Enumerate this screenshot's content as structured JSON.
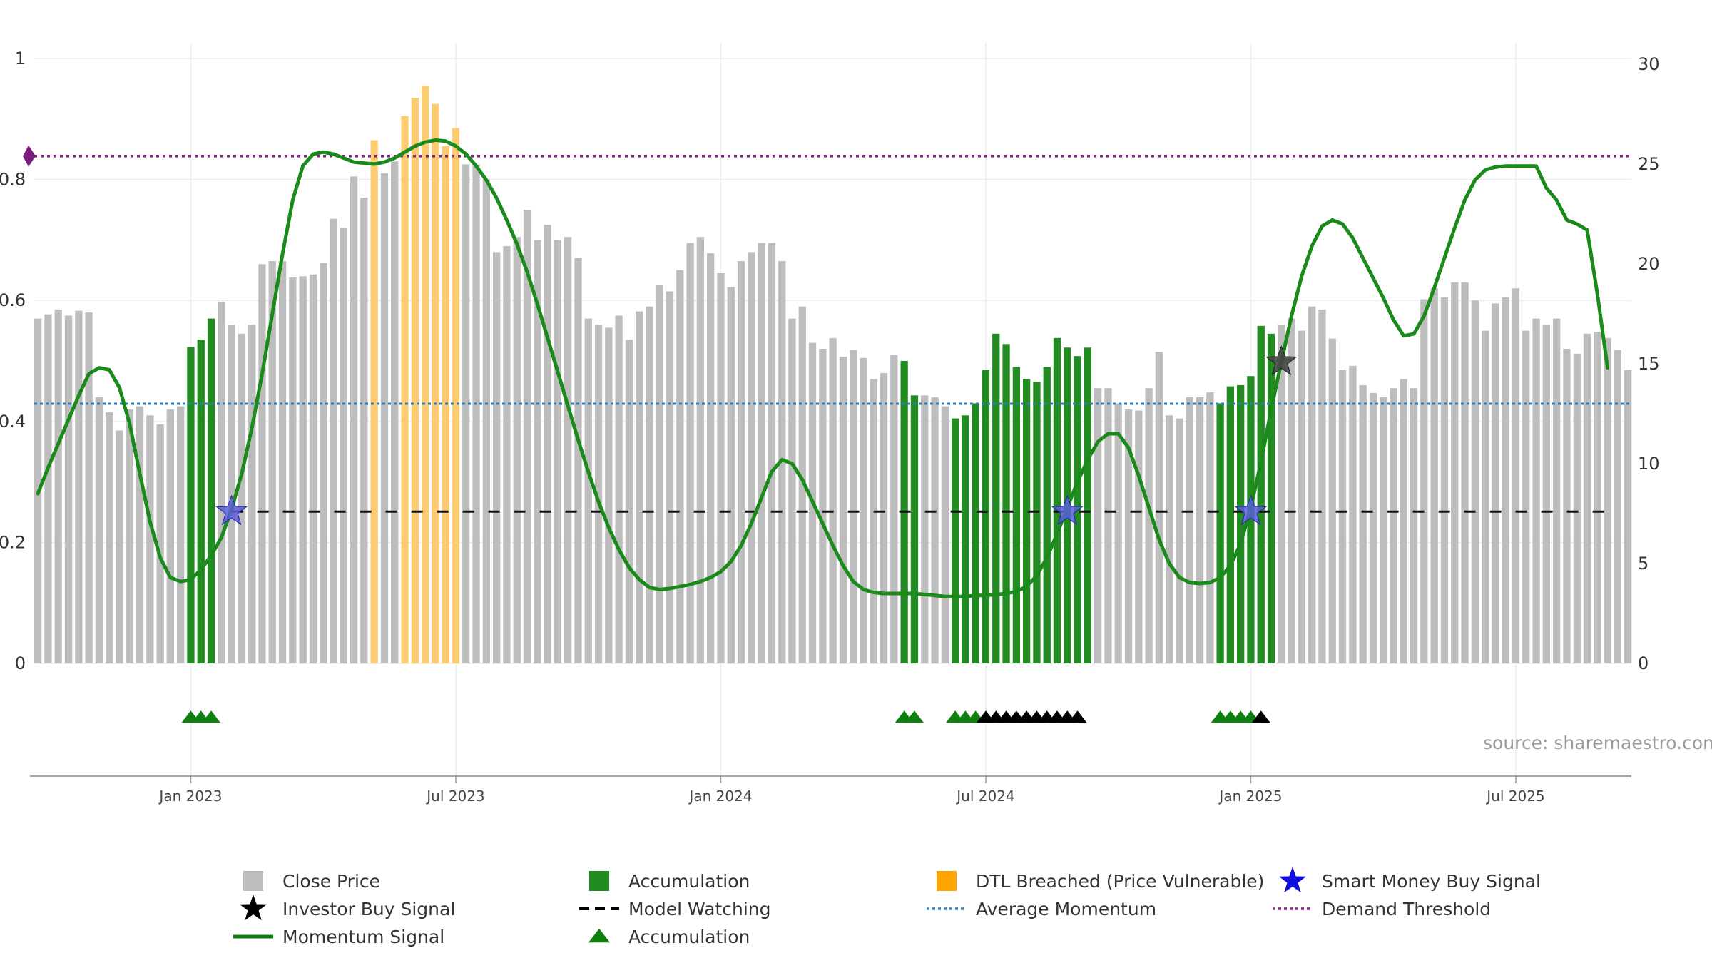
{
  "chart_data": {
    "type": "bar",
    "title": "",
    "source": "source: sharemaestro.com",
    "x_axis": {
      "ticks": [
        "Jan 2023",
        "Jul 2023",
        "Jan 2024",
        "Jul 2024",
        "Jan 2025",
        "Jul 2025"
      ],
      "tick_week_index": [
        15,
        41,
        67,
        93,
        119,
        145
      ]
    },
    "y_left": {
      "range": [
        0,
        1
      ],
      "ticks": [
        "0",
        "0.2",
        "0.4",
        "0.6",
        "0.8",
        "1"
      ],
      "tick_values": [
        0,
        0.2,
        0.4,
        0.6,
        0.8,
        1.0
      ]
    },
    "y_right": {
      "range": [
        0,
        30
      ],
      "ticks": [
        "0",
        "5",
        "10",
        "15",
        "20",
        "25",
        "30"
      ],
      "tick_values": [
        0,
        5,
        10,
        15,
        20,
        25,
        30
      ]
    },
    "grid": true,
    "colors": {
      "close": "#bdbdbd",
      "accumulation": "#228b22",
      "dtl": "#fdcc70",
      "momentum": "#1a8a1a",
      "smart_money": "#1010dd",
      "investor": "#000000",
      "average_momentum": "#2e7fb8",
      "demand_threshold": "#7b1e7b",
      "watching": "#111111"
    },
    "close_price": [
      0.57,
      0.577,
      0.585,
      0.575,
      0.583,
      0.58,
      0.44,
      0.415,
      0.385,
      0.42,
      0.425,
      0.41,
      0.395,
      0.42,
      0.425,
      0.523,
      0.535,
      0.57,
      0.598,
      0.56,
      0.545,
      0.56,
      0.66,
      0.665,
      0.665,
      0.638,
      0.64,
      0.643,
      0.662,
      0.735,
      0.72,
      0.805,
      0.77,
      0.865,
      0.81,
      0.83,
      0.905,
      0.935,
      0.955,
      0.925,
      0.855,
      0.885,
      0.825,
      0.825,
      0.8,
      0.68,
      0.69,
      0.705,
      0.75,
      0.7,
      0.725,
      0.7,
      0.705,
      0.67,
      0.57,
      0.56,
      0.555,
      0.575,
      0.535,
      0.582,
      0.59,
      0.625,
      0.615,
      0.65,
      0.695,
      0.705,
      0.678,
      0.645,
      0.622,
      0.665,
      0.68,
      0.695,
      0.695,
      0.665,
      0.57,
      0.59,
      0.53,
      0.52,
      0.538,
      0.507,
      0.518,
      0.505,
      0.47,
      0.48,
      0.51,
      0.5,
      0.443,
      0.443,
      0.44,
      0.425,
      0.405,
      0.41,
      0.43,
      0.485,
      0.545,
      0.528,
      0.49,
      0.47,
      0.465,
      0.49,
      0.538,
      0.522,
      0.508,
      0.522,
      0.455,
      0.455,
      0.43,
      0.42,
      0.418,
      0.455,
      0.515,
      0.41,
      0.405,
      0.44,
      0.44,
      0.448,
      0.43,
      0.458,
      0.46,
      0.475,
      0.558,
      0.545,
      0.56,
      0.57,
      0.55,
      0.59,
      0.585,
      0.537,
      0.485,
      0.492,
      0.46,
      0.447,
      0.44,
      0.455,
      0.47,
      0.455,
      0.602,
      0.62,
      0.605,
      0.63,
      0.63,
      0.6,
      0.55,
      0.595,
      0.605,
      0.62,
      0.55,
      0.57,
      0.56,
      0.57,
      0.52,
      0.512,
      0.545,
      0.548,
      0.538,
      0.518,
      0.485
    ],
    "dtl_breached_weeks": [
      33,
      36,
      37,
      38,
      39,
      40,
      41
    ],
    "accumulation_weeks": [
      15,
      16,
      17,
      85,
      86,
      90,
      91,
      92,
      93,
      94,
      95,
      96,
      97,
      98,
      99,
      100,
      101,
      102,
      103,
      116,
      117,
      118,
      119,
      120,
      121
    ],
    "momentum_signal": {
      "points": [
        [
          0,
          8.5
        ],
        [
          1,
          9.8
        ],
        [
          2,
          11
        ],
        [
          3,
          12.2
        ],
        [
          4,
          13.4
        ],
        [
          5,
          14.5
        ],
        [
          6,
          14.8
        ],
        [
          7,
          14.7
        ],
        [
          8,
          13.8
        ],
        [
          9,
          12
        ],
        [
          10,
          9.5
        ],
        [
          11,
          7.1
        ],
        [
          12,
          5.3
        ],
        [
          13,
          4.3
        ],
        [
          14,
          4.1
        ],
        [
          15,
          4.2
        ],
        [
          16,
          4.7
        ],
        [
          17,
          5.4
        ],
        [
          18,
          6.3
        ],
        [
          19,
          7.7
        ],
        [
          20,
          9.5
        ],
        [
          21,
          11.8
        ],
        [
          22,
          14.5
        ],
        [
          23,
          17.5
        ],
        [
          24,
          20.5
        ],
        [
          25,
          23.2
        ],
        [
          26,
          24.9
        ],
        [
          27,
          25.5
        ],
        [
          28,
          25.6
        ],
        [
          29,
          25.5
        ],
        [
          30,
          25.3
        ],
        [
          31,
          25.1
        ],
        [
          32,
          25.05
        ],
        [
          33,
          25.0
        ],
        [
          34,
          25.1
        ],
        [
          35,
          25.3
        ],
        [
          36,
          25.6
        ],
        [
          37,
          25.9
        ],
        [
          38,
          26.1
        ],
        [
          39,
          26.2
        ],
        [
          40,
          26.15
        ],
        [
          41,
          25.9
        ],
        [
          42,
          25.5
        ],
        [
          43,
          24.9
        ],
        [
          44,
          24.2
        ],
        [
          45,
          23.3
        ],
        [
          46,
          22.2
        ],
        [
          47,
          21
        ],
        [
          48,
          19.6
        ],
        [
          49,
          18
        ],
        [
          50,
          16.3
        ],
        [
          51,
          14.6
        ],
        [
          52,
          12.9
        ],
        [
          53,
          11.2
        ],
        [
          54,
          9.6
        ],
        [
          55,
          8.1
        ],
        [
          56,
          6.8
        ],
        [
          57,
          5.7
        ],
        [
          58,
          4.8
        ],
        [
          59,
          4.2
        ],
        [
          60,
          3.8
        ],
        [
          61,
          3.7
        ],
        [
          62,
          3.75
        ],
        [
          63,
          3.85
        ],
        [
          64,
          3.95
        ],
        [
          65,
          4.1
        ],
        [
          66,
          4.3
        ],
        [
          67,
          4.6
        ],
        [
          68,
          5.1
        ],
        [
          69,
          5.9
        ],
        [
          70,
          7
        ],
        [
          71,
          8.3
        ],
        [
          72,
          9.6
        ],
        [
          73,
          10.2
        ],
        [
          74,
          10
        ],
        [
          75,
          9.2
        ],
        [
          76,
          8.1
        ],
        [
          77,
          7
        ],
        [
          78,
          5.9
        ],
        [
          79,
          4.9
        ],
        [
          80,
          4.1
        ],
        [
          81,
          3.7
        ],
        [
          82,
          3.55
        ],
        [
          83,
          3.5
        ],
        [
          84,
          3.5
        ],
        [
          85,
          3.5
        ],
        [
          86,
          3.5
        ],
        [
          87,
          3.45
        ],
        [
          88,
          3.4
        ],
        [
          89,
          3.35
        ],
        [
          90,
          3.35
        ],
        [
          91,
          3.35
        ],
        [
          92,
          3.4
        ],
        [
          93,
          3.4
        ],
        [
          94,
          3.45
        ],
        [
          95,
          3.5
        ],
        [
          96,
          3.6
        ],
        [
          97,
          3.85
        ],
        [
          98,
          4.4
        ],
        [
          99,
          5.3
        ],
        [
          100,
          6.5
        ],
        [
          101,
          7.8
        ],
        [
          102,
          9.1
        ],
        [
          103,
          10.2
        ],
        [
          104,
          11.1
        ],
        [
          105,
          11.5
        ],
        [
          106,
          11.5
        ],
        [
          107,
          10.8
        ],
        [
          108,
          9.4
        ],
        [
          109,
          7.8
        ],
        [
          110,
          6.2
        ],
        [
          111,
          5
        ],
        [
          112,
          4.3
        ],
        [
          113,
          4.05
        ],
        [
          114,
          4.0
        ],
        [
          115,
          4.05
        ],
        [
          116,
          4.3
        ],
        [
          117,
          4.9
        ],
        [
          118,
          6
        ],
        [
          119,
          7.8
        ],
        [
          120,
          10.1
        ],
        [
          121,
          12.7
        ],
        [
          122,
          15.1
        ],
        [
          123,
          17.4
        ],
        [
          124,
          19.4
        ],
        [
          125,
          20.9
        ],
        [
          126,
          21.9
        ],
        [
          127,
          22.2
        ],
        [
          128,
          22
        ],
        [
          129,
          21.3
        ],
        [
          130,
          20.3
        ],
        [
          131,
          19.3
        ],
        [
          132,
          18.3
        ],
        [
          133,
          17.2
        ],
        [
          134,
          16.4
        ],
        [
          135,
          16.5
        ],
        [
          136,
          17.4
        ],
        [
          137,
          18.8
        ],
        [
          138,
          20.3
        ],
        [
          139,
          21.8
        ],
        [
          140,
          23.2
        ],
        [
          141,
          24.2
        ],
        [
          142,
          24.7
        ],
        [
          143,
          24.85
        ],
        [
          144,
          24.9
        ],
        [
          145,
          24.9
        ],
        [
          146,
          24.9
        ],
        [
          147,
          24.9
        ],
        [
          148,
          23.8
        ],
        [
          149,
          23.2
        ],
        [
          150,
          22.2
        ],
        [
          151,
          22
        ],
        [
          152,
          21.7
        ],
        [
          153,
          18.5
        ],
        [
          154,
          14.8
        ]
      ]
    },
    "average_momentum": 13.0,
    "demand_threshold": 25.4,
    "model_watching": {
      "level": 7.6,
      "from_week": 19,
      "to_week": 155
    },
    "smart_money_buy_signals": [
      {
        "week": 19,
        "value": 7.6
      },
      {
        "week": 101,
        "value": 7.6
      },
      {
        "week": 119,
        "value": 7.6
      }
    ],
    "investor_buy_signals": [
      {
        "week": 122,
        "value": 15.1
      }
    ],
    "accumulation_markers": {
      "green": [
        15,
        16,
        17,
        85,
        86,
        90,
        91,
        92,
        116,
        117,
        118,
        119
      ],
      "black": [
        93,
        94,
        95,
        96,
        97,
        98,
        99,
        100,
        101,
        102,
        120
      ]
    },
    "legend": [
      {
        "label": "Close Price",
        "type": "square",
        "color": "#bdbdbd"
      },
      {
        "label": "Accumulation",
        "type": "square",
        "color": "#228b22"
      },
      {
        "label": "DTL Breached (Price Vulnerable)",
        "type": "square",
        "color": "#ffa500"
      },
      {
        "label": "Smart Money Buy Signal",
        "type": "star",
        "color": "#1010dd"
      },
      {
        "label": "Investor Buy Signal",
        "type": "star",
        "color": "#000000"
      },
      {
        "label": "Model Watching",
        "type": "dash",
        "color": "#000000"
      },
      {
        "label": "Average Momentum",
        "type": "dot",
        "color": "#2e7fb8"
      },
      {
        "label": "Demand Threshold",
        "type": "dot",
        "color": "#7b1e7b"
      },
      {
        "label": "Momentum Signal",
        "type": "line",
        "color": "#0f800f"
      },
      {
        "label": "Accumulation",
        "type": "triangle",
        "color": "#0f800f"
      }
    ]
  }
}
